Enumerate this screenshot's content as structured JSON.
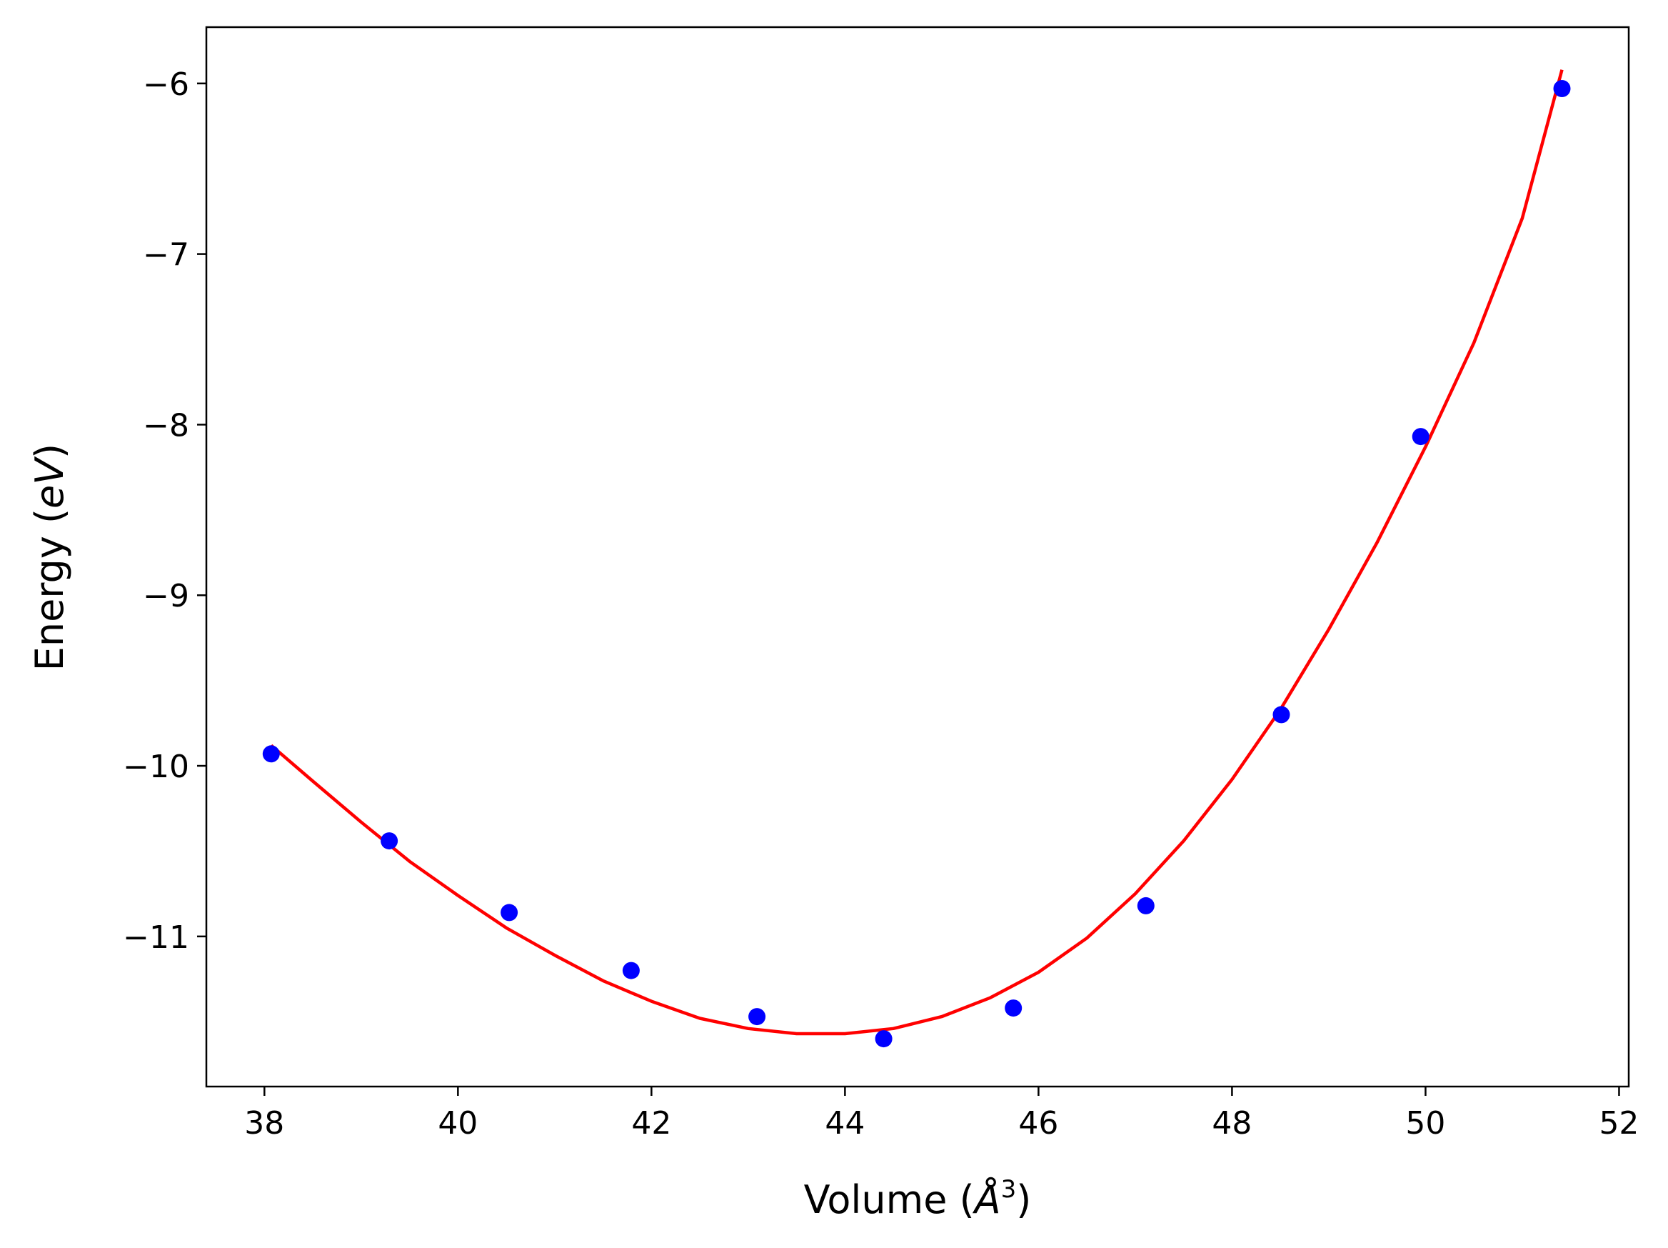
{
  "chart_data": {
    "type": "scatter",
    "xlabel": "Volume (Å³)",
    "ylabel": "Energy (eV)",
    "xlabel_parts": {
      "pre": "Volume (",
      "sym": "Å",
      "sup": "3",
      "post": ")"
    },
    "ylabel_parts": {
      "pre": "Energy (",
      "unit": "eV",
      "post": ")"
    },
    "xlim": [
      37.4,
      52.1
    ],
    "ylim": [
      -11.88,
      -5.67
    ],
    "x_ticks": [
      38,
      40,
      42,
      44,
      46,
      48,
      50,
      52
    ],
    "x_tick_labels": [
      "38",
      "40",
      "42",
      "44",
      "46",
      "48",
      "50",
      "52"
    ],
    "y_ticks": [
      -6,
      -7,
      -8,
      -9,
      -10,
      -11
    ],
    "y_tick_labels": [
      "−6",
      "−7",
      "−8",
      "−9",
      "−10",
      "−11"
    ],
    "grid": false,
    "series": [
      {
        "kind": "points",
        "color": "#0000ff",
        "x": [
          38.07,
          39.29,
          40.53,
          41.79,
          43.09,
          44.4,
          45.74,
          47.11,
          48.51,
          49.95,
          51.41
        ],
        "y": [
          -9.93,
          -10.44,
          -10.86,
          -11.2,
          -11.47,
          -11.6,
          -11.42,
          -10.82,
          -9.7,
          -8.07,
          -6.03
        ]
      },
      {
        "kind": "fit-curve",
        "color": "#ff0000",
        "x": [
          38.07,
          38.5,
          39.0,
          39.5,
          40.0,
          40.5,
          41.0,
          41.5,
          42.0,
          42.5,
          43.0,
          43.5,
          44.0,
          44.5,
          45.0,
          45.5,
          46.0,
          46.5,
          47.0,
          47.5,
          48.0,
          48.5,
          49.0,
          49.5,
          50.0,
          50.5,
          51.0,
          51.41
        ],
        "y": [
          -9.88,
          -10.09,
          -10.33,
          -10.56,
          -10.76,
          -10.95,
          -11.11,
          -11.26,
          -11.38,
          -11.48,
          -11.54,
          -11.57,
          -11.57,
          -11.54,
          -11.47,
          -11.36,
          -11.21,
          -11.01,
          -10.75,
          -10.44,
          -10.08,
          -9.67,
          -9.2,
          -8.69,
          -8.13,
          -7.52,
          -6.79,
          -5.92
        ]
      }
    ]
  }
}
